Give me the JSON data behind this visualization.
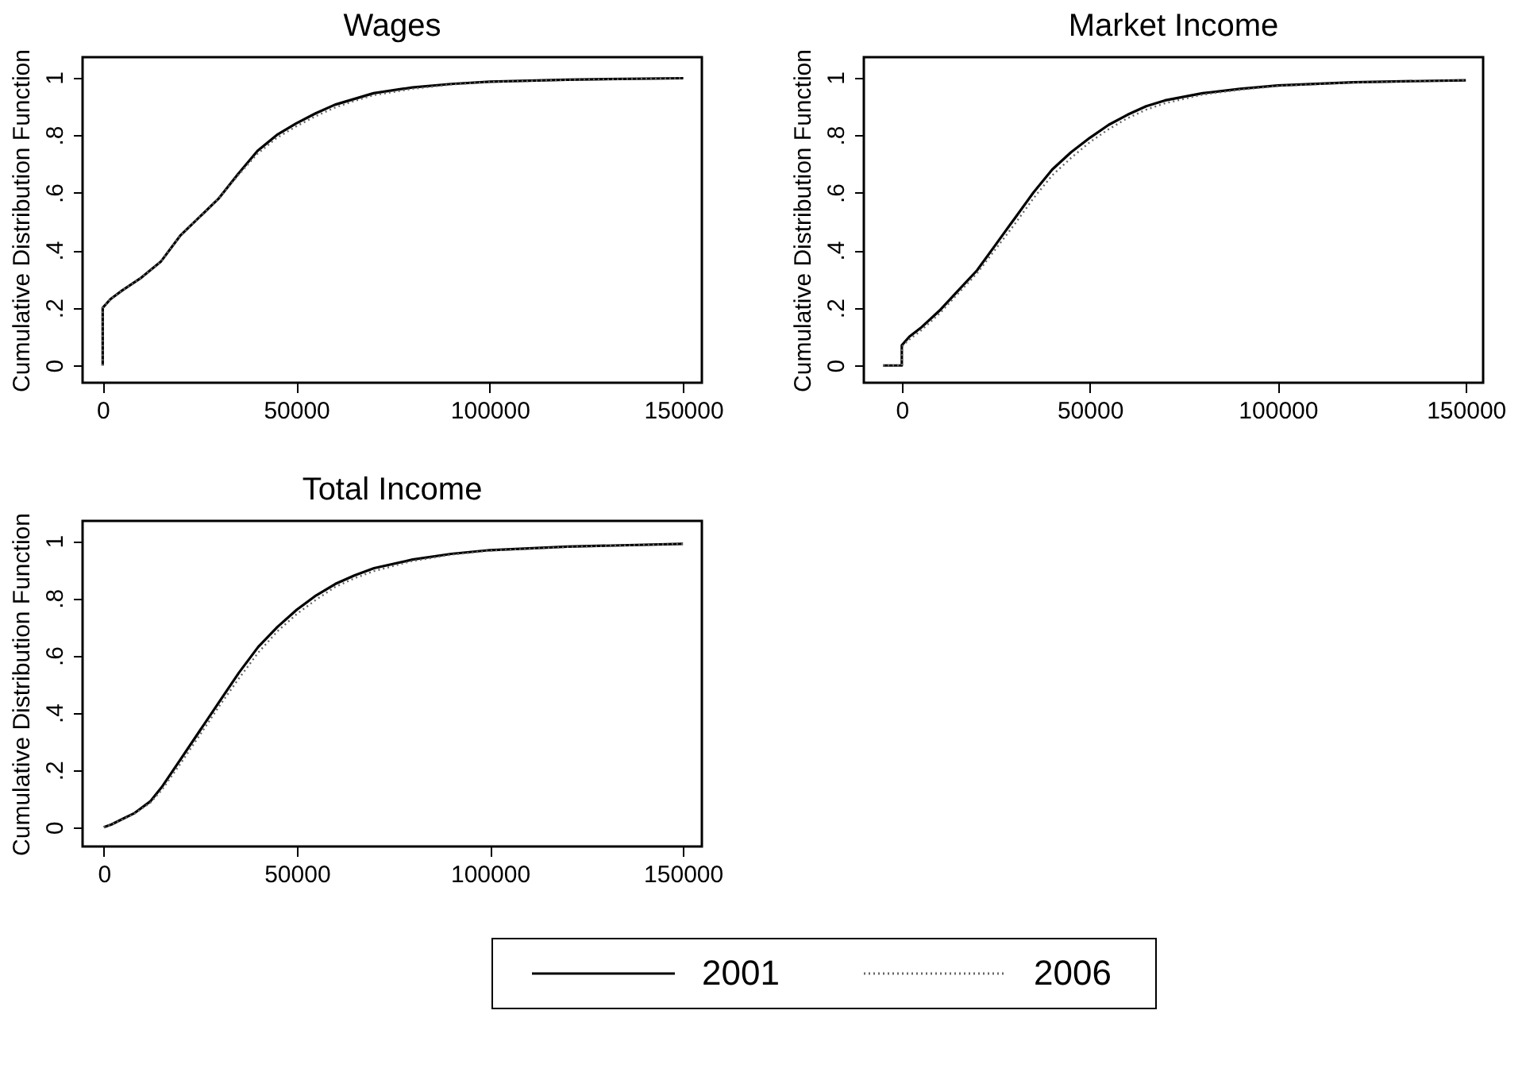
{
  "chart_data": [
    {
      "type": "line",
      "title": "Wages",
      "ylabel": "Cumulative Distribution Function",
      "xlim": [
        -5200,
        154800
      ],
      "ylim": [
        -0.06,
        1.07
      ],
      "xticks": [
        0,
        50000,
        100000,
        150000
      ],
      "yticks": [
        0,
        {
          "value": 0.2,
          "label": ".2"
        },
        {
          "value": 0.4,
          "label": ".4"
        },
        {
          "value": 0.6,
          "label": ".6"
        },
        {
          "value": 0.8,
          "label": ".8"
        },
        1
      ],
      "grid": false,
      "legend": "bottom",
      "series": [
        {
          "name": "2001",
          "color": "#000000",
          "line_style": "solid",
          "x": [
            0,
            0,
            2000,
            5000,
            10000,
            15000,
            20000,
            25000,
            30000,
            35000,
            40000,
            45000,
            50000,
            55000,
            60000,
            65000,
            70000,
            80000,
            90000,
            100000,
            120000,
            150000
          ],
          "values": [
            0,
            0.2,
            0.23,
            0.26,
            0.305,
            0.36,
            0.45,
            0.515,
            0.58,
            0.665,
            0.745,
            0.8,
            0.84,
            0.875,
            0.905,
            0.925,
            0.945,
            0.965,
            0.977,
            0.985,
            0.992,
            0.997
          ]
        },
        {
          "name": "2006",
          "color": "#666666",
          "line_style": "dotted",
          "x": [
            0,
            0,
            2000,
            5000,
            10000,
            15000,
            20000,
            25000,
            30000,
            35000,
            40000,
            45000,
            50000,
            55000,
            60000,
            65000,
            70000,
            80000,
            90000,
            100000,
            120000,
            150000
          ],
          "values": [
            0,
            0.2,
            0.23,
            0.26,
            0.305,
            0.36,
            0.45,
            0.515,
            0.58,
            0.66,
            0.735,
            0.79,
            0.83,
            0.865,
            0.895,
            0.918,
            0.938,
            0.96,
            0.975,
            0.984,
            0.991,
            0.997
          ]
        }
      ]
    },
    {
      "type": "line",
      "title": "Market Income",
      "ylabel": "Cumulative Distribution Function",
      "xlim": [
        -10100,
        154600
      ],
      "ylim": [
        -0.06,
        1.07
      ],
      "xticks": [
        0,
        50000,
        100000,
        150000
      ],
      "yticks": [
        0,
        {
          "value": 0.2,
          "label": ".2"
        },
        {
          "value": 0.4,
          "label": ".4"
        },
        {
          "value": 0.6,
          "label": ".6"
        },
        {
          "value": 0.8,
          "label": ".8"
        },
        1
      ],
      "grid": false,
      "legend": "bottom",
      "series": [
        {
          "name": "2001",
          "color": "#000000",
          "line_style": "solid",
          "x": [
            -5000,
            0,
            0,
            2000,
            5000,
            10000,
            15000,
            20000,
            25000,
            30000,
            35000,
            40000,
            45000,
            50000,
            55000,
            60000,
            65000,
            70000,
            80000,
            90000,
            100000,
            120000,
            150000
          ],
          "values": [
            0,
            0,
            0.07,
            0.1,
            0.13,
            0.19,
            0.26,
            0.33,
            0.42,
            0.51,
            0.6,
            0.68,
            0.74,
            0.79,
            0.835,
            0.87,
            0.9,
            0.92,
            0.945,
            0.96,
            0.972,
            0.983,
            0.99
          ]
        },
        {
          "name": "2006",
          "color": "#666666",
          "line_style": "dotted",
          "x": [
            -5000,
            0,
            0,
            2000,
            5000,
            10000,
            15000,
            20000,
            25000,
            30000,
            35000,
            40000,
            45000,
            50000,
            55000,
            60000,
            65000,
            70000,
            80000,
            90000,
            100000,
            120000,
            150000
          ],
          "values": [
            0,
            0,
            0.065,
            0.09,
            0.12,
            0.18,
            0.25,
            0.32,
            0.405,
            0.49,
            0.58,
            0.66,
            0.72,
            0.775,
            0.82,
            0.858,
            0.888,
            0.91,
            0.94,
            0.957,
            0.97,
            0.982,
            0.99
          ]
        }
      ]
    },
    {
      "type": "line",
      "title": "Total Income",
      "ylabel": "Cumulative Distribution Function",
      "xlim": [
        -5500,
        154900
      ],
      "ylim": [
        -0.067,
        1.07
      ],
      "xticks": [
        0,
        50000,
        100000,
        150000
      ],
      "yticks": [
        0,
        {
          "value": 0.2,
          "label": ".2"
        },
        {
          "value": 0.4,
          "label": ".4"
        },
        {
          "value": 0.6,
          "label": ".6"
        },
        {
          "value": 0.8,
          "label": ".8"
        },
        1
      ],
      "grid": false,
      "legend": "bottom",
      "series": [
        {
          "name": "2001",
          "color": "#000000",
          "line_style": "solid",
          "x": [
            0,
            2000,
            5000,
            8000,
            12000,
            15000,
            20000,
            25000,
            30000,
            35000,
            40000,
            45000,
            50000,
            55000,
            60000,
            65000,
            70000,
            80000,
            90000,
            100000,
            120000,
            150000
          ],
          "values": [
            0,
            0.01,
            0.03,
            0.05,
            0.09,
            0.14,
            0.24,
            0.34,
            0.44,
            0.54,
            0.63,
            0.7,
            0.76,
            0.81,
            0.85,
            0.88,
            0.905,
            0.935,
            0.955,
            0.968,
            0.98,
            0.99
          ]
        },
        {
          "name": "2006",
          "color": "#666666",
          "line_style": "dotted",
          "x": [
            0,
            2000,
            5000,
            8000,
            12000,
            15000,
            20000,
            25000,
            30000,
            35000,
            40000,
            45000,
            50000,
            55000,
            60000,
            65000,
            70000,
            80000,
            90000,
            100000,
            120000,
            150000
          ],
          "values": [
            0,
            0.01,
            0.028,
            0.048,
            0.085,
            0.13,
            0.225,
            0.325,
            0.425,
            0.52,
            0.61,
            0.685,
            0.745,
            0.795,
            0.84,
            0.87,
            0.895,
            0.93,
            0.952,
            0.966,
            0.979,
            0.99
          ]
        }
      ]
    }
  ]
}
